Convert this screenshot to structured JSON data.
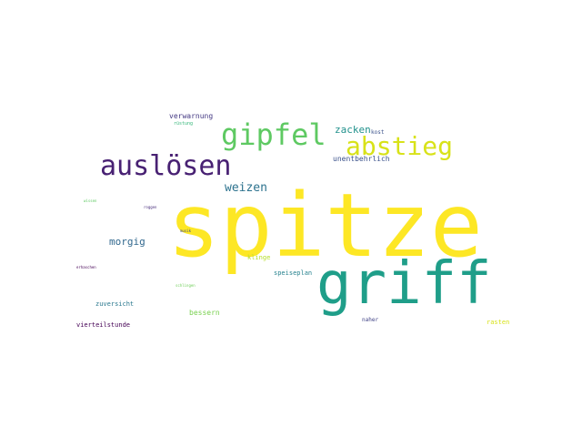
{
  "words": [
    {
      "text": "spitze",
      "color": "#fde725"
    },
    {
      "text": "griff",
      "color": "#1f9e89"
    },
    {
      "text": "auslösen",
      "color": "#482173"
    },
    {
      "text": "gipfel",
      "color": "#5ec962"
    },
    {
      "text": "abstieg",
      "color": "#d8e219"
    },
    {
      "text": "weizen",
      "color": "#2c728e"
    },
    {
      "text": "morgig",
      "color": "#31688e"
    },
    {
      "text": "zacken",
      "color": "#21918c"
    },
    {
      "text": "unentbehrlich",
      "color": "#3b528b"
    },
    {
      "text": "verwarnung",
      "color": "#443983"
    },
    {
      "text": "zuversicht",
      "color": "#2a788e"
    },
    {
      "text": "vierteilstunde",
      "color": "#440154"
    },
    {
      "text": "bessern",
      "color": "#7ad151"
    },
    {
      "text": "speiseplan",
      "color": "#26828e"
    },
    {
      "text": "klinge",
      "color": "#b5de2b"
    },
    {
      "text": "kost",
      "color": "#3b528b"
    },
    {
      "text": "rasten",
      "color": "#d8e219"
    },
    {
      "text": "naher",
      "color": "#414487"
    },
    {
      "text": "rüstung",
      "color": "#35b779"
    },
    {
      "text": "wissen",
      "color": "#5ec962"
    },
    {
      "text": "roggen",
      "color": "#472d7b"
    },
    {
      "text": "musik",
      "color": "#3e4a89"
    },
    {
      "text": "erhaschen",
      "color": "#440154"
    },
    {
      "text": "schlingen",
      "color": "#6ece58"
    }
  ]
}
